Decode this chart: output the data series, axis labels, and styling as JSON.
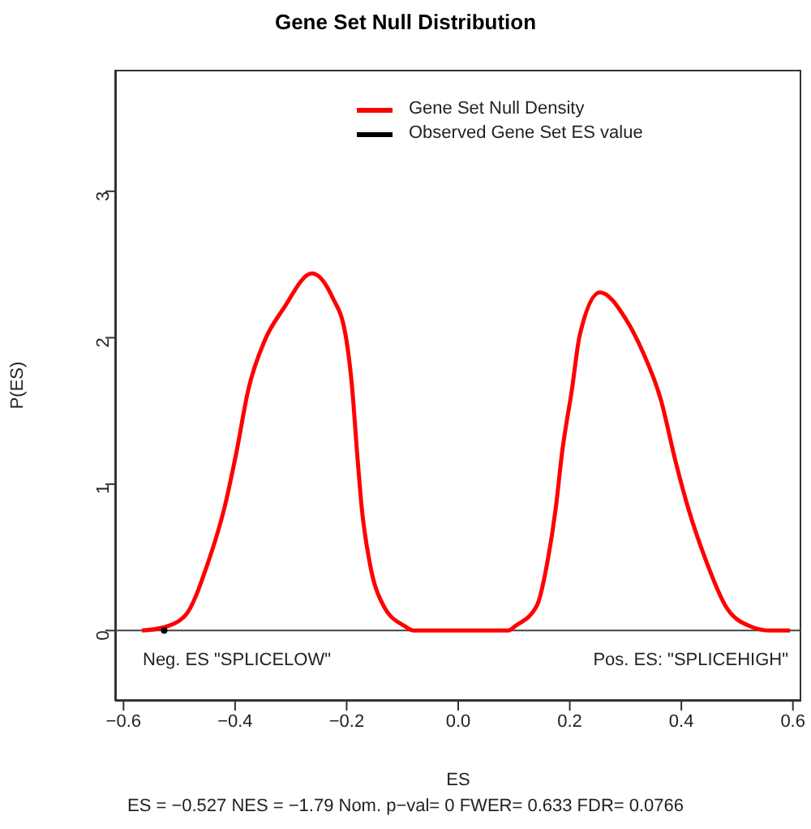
{
  "chart_data": {
    "type": "line",
    "title": "Gene Set Null Distribution",
    "xlabel": "ES",
    "ylabel": "P(ES)",
    "xlim": [
      -0.615,
      0.615
    ],
    "xticks": [
      {
        "value": -0.6,
        "label": "−0.6"
      },
      {
        "value": -0.4,
        "label": "−0.4"
      },
      {
        "value": -0.2,
        "label": "−0.2"
      },
      {
        "value": 0,
        "label": "0.0"
      },
      {
        "value": 0.2,
        "label": "0.2"
      },
      {
        "value": 0.4,
        "label": "0.4"
      },
      {
        "value": 0.6,
        "label": "0.6"
      }
    ],
    "ylim": [
      -0.48,
      3.83
    ],
    "yticks": [
      0,
      1,
      2,
      3
    ],
    "legend": "top",
    "grid": false,
    "series": [
      {
        "name": "Gene Set Null Density",
        "color": "#ff0000",
        "x": [
          -0.567,
          -0.53,
          -0.49,
          -0.448,
          -0.419,
          -0.398,
          -0.376,
          -0.347,
          -0.313,
          -0.262,
          -0.226,
          -0.202,
          -0.19,
          -0.181,
          -0.173,
          -0.159,
          -0.134,
          -0.096,
          -0.08,
          0,
          0.09,
          0.102,
          0.141,
          0.16,
          0.175,
          0.186,
          0.204,
          0.218,
          0.254,
          0.3,
          0.33,
          0.363,
          0.39,
          0.412,
          0.445,
          0.479,
          0.523,
          0.56,
          0.595
        ],
        "values": [
          0,
          0.02,
          0.1,
          0.47,
          0.84,
          1.21,
          1.65,
          1.98,
          2.2,
          2.44,
          2.28,
          2.02,
          1.65,
          1.2,
          0.84,
          0.47,
          0.17,
          0.03,
          0,
          0,
          0,
          0.03,
          0.17,
          0.47,
          0.84,
          1.21,
          1.65,
          2.02,
          2.31,
          2.13,
          1.91,
          1.58,
          1.15,
          0.84,
          0.47,
          0.17,
          0.03,
          0,
          0
        ]
      },
      {
        "name": "Observed Gene Set ES value",
        "color": "#000000",
        "type": "scatter",
        "x": [
          -0.527
        ],
        "values": [
          0
        ]
      }
    ],
    "ref_lines": [
      {
        "axis": "y",
        "value": 0,
        "color": "#444444"
      }
    ],
    "annotations": [
      "Neg. ES \"SPLICELOW\"",
      "Pos. ES: \"SPLICEHIGH\"",
      "ES = −0.527  NES = −1.79 Nom. p−val= 0 FWER= 0.633 FDR= 0.0766"
    ]
  }
}
